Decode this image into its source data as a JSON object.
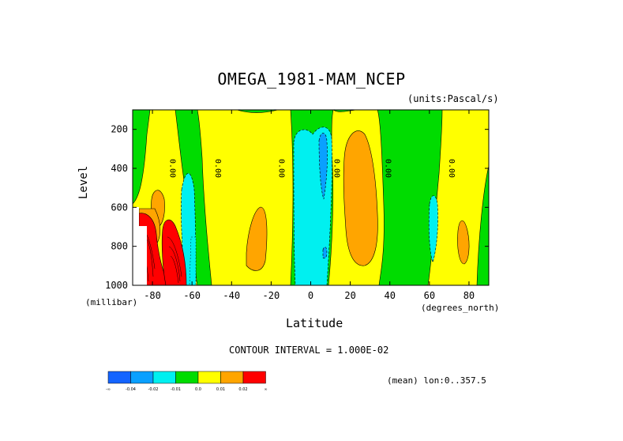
{
  "chart_data": {
    "type": "heatmap",
    "title": "OMEGA_1981-MAM_NCEP",
    "units": "(units:Pascal/s)",
    "xlabel": "Latitude",
    "x_unit": "(degrees_north)",
    "ylabel": "Level",
    "y_unit": "(millibar)",
    "xlim": [
      -90,
      90
    ],
    "ylim": [
      1000,
      100
    ],
    "x_ticks": [
      -80,
      -60,
      -40,
      -20,
      0,
      20,
      40,
      60,
      80
    ],
    "x_tick_labels": [
      "-80",
      "-60",
      "-40",
      "-20",
      "0",
      "20",
      "40",
      "60",
      "80"
    ],
    "y_ticks": [
      200,
      400,
      600,
      800,
      1000
    ],
    "y_tick_labels": [
      "200",
      "400",
      "600",
      "800",
      "1000"
    ],
    "contour_interval_text": "CONTOUR INTERVAL = 1.000E-02",
    "mean_note": "(mean) lon:0..357.5",
    "contour_labels": [
      {
        "text": "0.00",
        "lat": -71,
        "level": 400
      },
      {
        "text": "0.00",
        "lat": -48,
        "level": 400
      },
      {
        "text": "0.00",
        "lat": -16,
        "level": 400
      },
      {
        "text": "0.00",
        "lat": 12,
        "level": 400
      },
      {
        "text": "0.00",
        "lat": 38,
        "level": 400
      },
      {
        "text": "0.00",
        "lat": 70,
        "level": 400
      }
    ],
    "colorbar": {
      "levels": [
        "-∞",
        "-0.04",
        "-0.02",
        "-0.01",
        "0.0",
        "0.01",
        "0.02",
        "∞"
      ],
      "colors": [
        "#1464ff",
        "#0aa0ff",
        "#00f0f0",
        "#00dc00",
        "#ffff00",
        "#ffa500",
        "#ff0000"
      ]
    }
  }
}
